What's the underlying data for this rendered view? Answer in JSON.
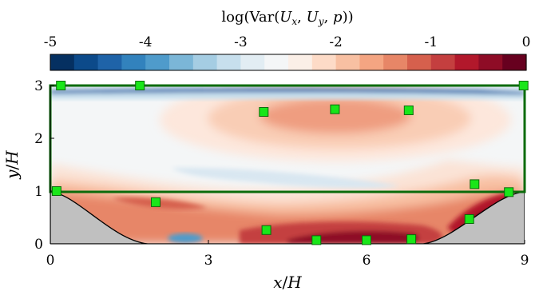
{
  "chart_data": {
    "type": "heatmap",
    "title": "",
    "colorbar": {
      "label_parts": [
        "log(Var(",
        "U",
        "x",
        ", ",
        "U",
        "y",
        ", ",
        "p",
        "))"
      ],
      "range": [
        -5,
        0
      ],
      "ticks": [
        "-5",
        "-4",
        "-3",
        "-2",
        "-1",
        "0"
      ],
      "tick_values": [
        -5,
        -4,
        -3,
        -2,
        -1,
        0
      ],
      "levels": 20,
      "colors": [
        "#053061",
        "#0c4a8a",
        "#1f63a8",
        "#3282bd",
        "#4f9bcb",
        "#7bb6d7",
        "#a5cde3",
        "#c7dfed",
        "#e2edf3",
        "#f4f6f7",
        "#fbefe7",
        "#fddbc7",
        "#f8c0a2",
        "#f4a582",
        "#e78667",
        "#d6604d",
        "#c43f3f",
        "#b2182b",
        "#8e0c26",
        "#67001f"
      ]
    },
    "xlabel_parts": [
      "x",
      "/",
      "H"
    ],
    "ylabel_parts": [
      "y",
      "/",
      "H"
    ],
    "xlim": [
      0,
      9
    ],
    "ylim": [
      0,
      3
    ],
    "xticks": [
      "0",
      "3",
      "6",
      "9"
    ],
    "xtick_values": [
      0,
      3,
      6,
      9
    ],
    "yticks": [
      "0",
      "1",
      "2",
      "3"
    ],
    "ytick_values": [
      0,
      1,
      2,
      3
    ],
    "colors": {
      "domain_border": "#0b6b0b",
      "hill": "#c0c0c0",
      "marker_fill": "#19e619",
      "marker_edge": "#0b6b0b"
    },
    "markers": [
      {
        "x": 0.2,
        "y": 3.0
      },
      {
        "x": 1.7,
        "y": 3.0
      },
      {
        "x": 8.98,
        "y": 3.0
      },
      {
        "x": 4.05,
        "y": 2.5
      },
      {
        "x": 5.4,
        "y": 2.55
      },
      {
        "x": 6.8,
        "y": 2.53
      },
      {
        "x": 0.12,
        "y": 1.0
      },
      {
        "x": 2.0,
        "y": 0.79
      },
      {
        "x": 8.05,
        "y": 1.13
      },
      {
        "x": 8.7,
        "y": 0.98
      },
      {
        "x": 7.95,
        "y": 0.47
      },
      {
        "x": 4.1,
        "y": 0.26
      },
      {
        "x": 5.05,
        "y": 0.07
      },
      {
        "x": 6.0,
        "y": 0.07
      },
      {
        "x": 6.85,
        "y": 0.09
      }
    ]
  }
}
